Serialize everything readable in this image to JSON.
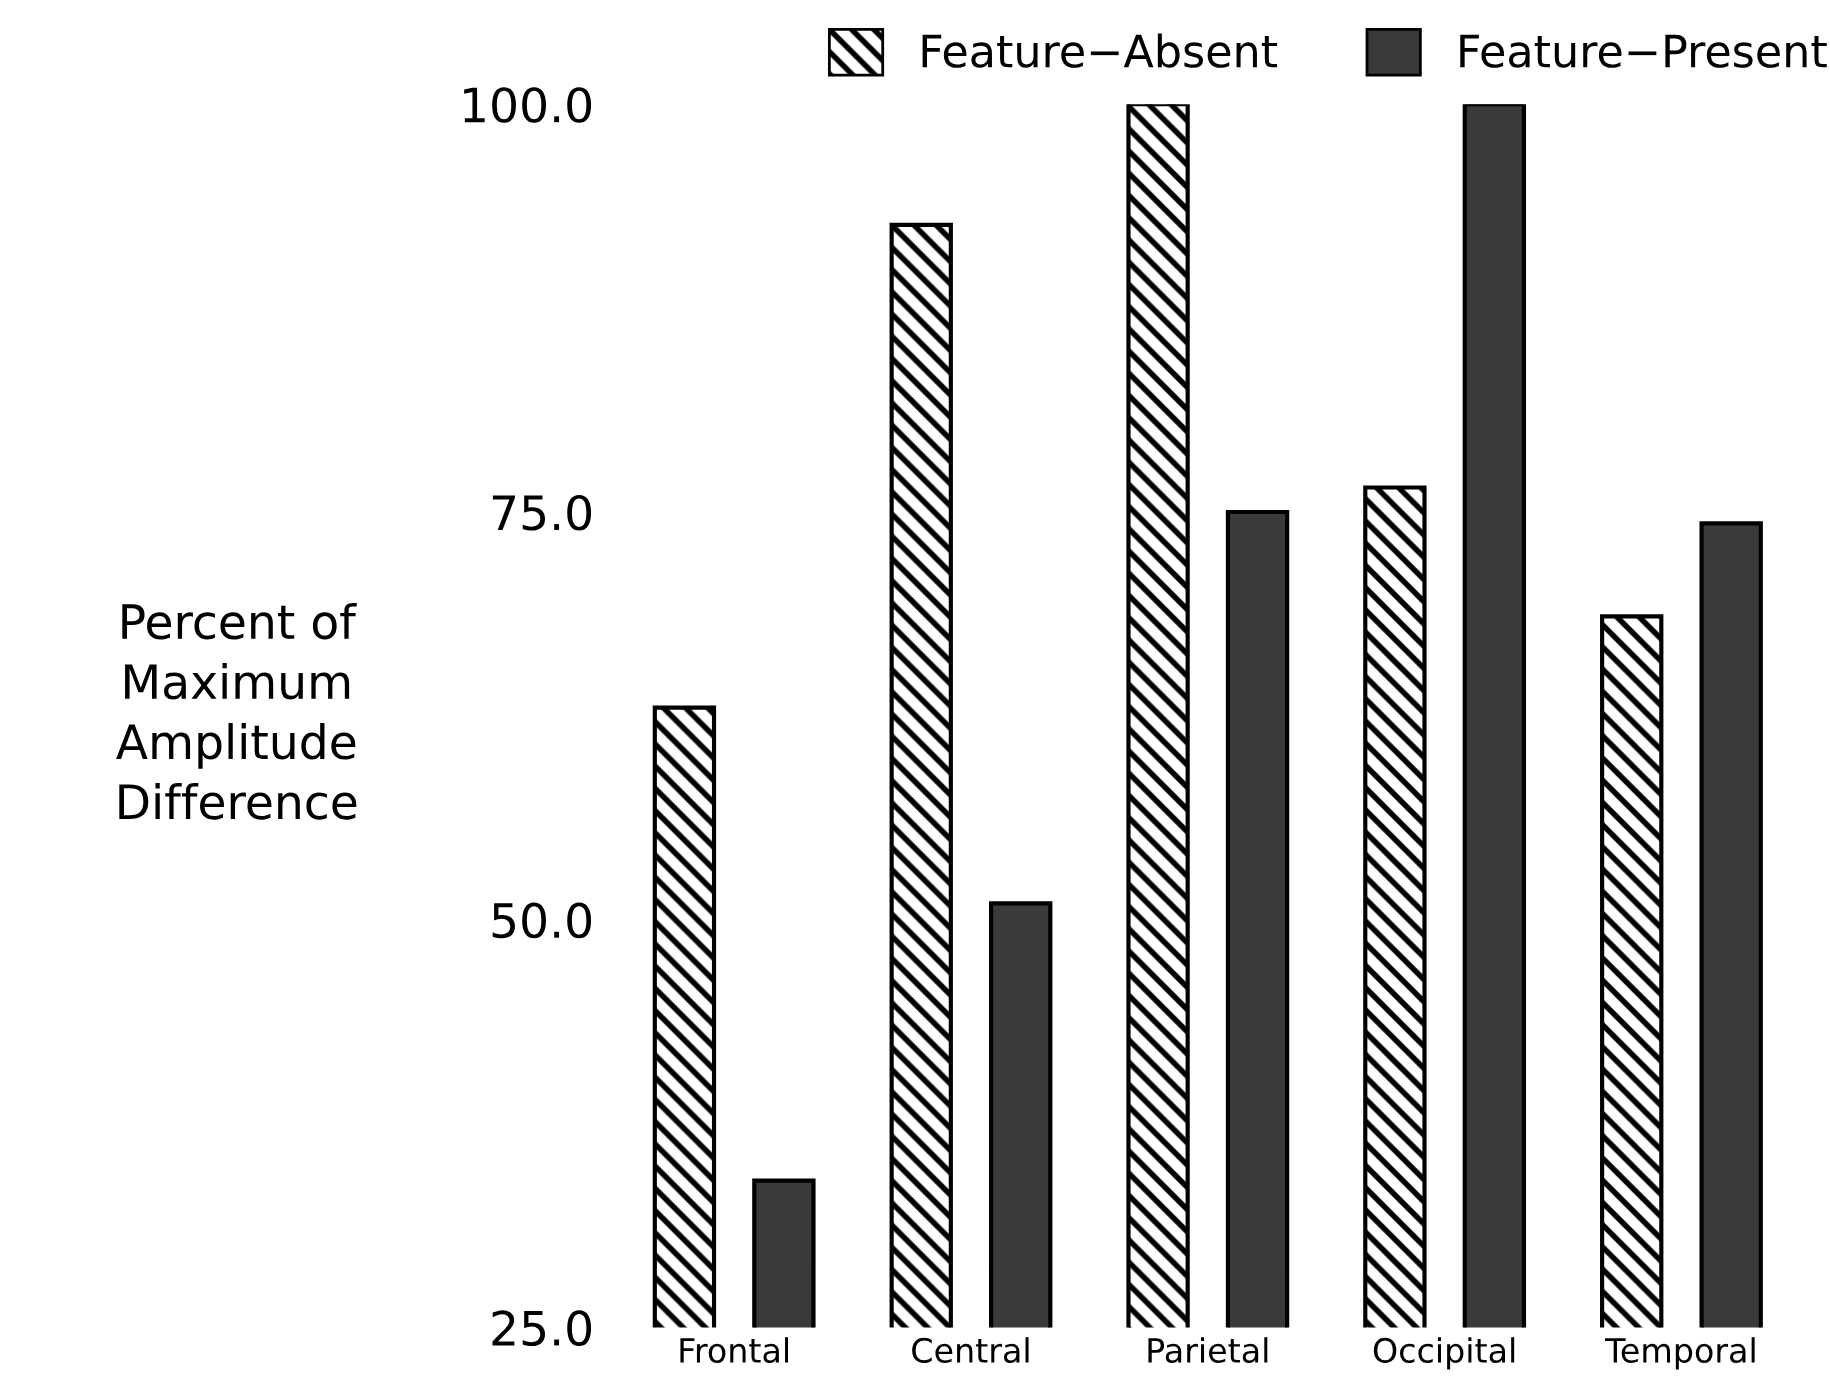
{
  "chart_data": {
    "type": "bar",
    "ylabel": "Percent of\nMaximum\nAmplitude\nDifference",
    "categories": [
      "Frontal",
      "Central",
      "Parietal",
      "Occipital",
      "Temporal"
    ],
    "series": [
      {
        "name": "Feature−Absent",
        "color": "#000000",
        "values": [
          63,
          92.6,
          100,
          76.5,
          68.6
        ]
      },
      {
        "name": "Feature−Present",
        "color": "#3a3a3a",
        "values": [
          34,
          51,
          75,
          100,
          74.3
        ]
      }
    ],
    "ylim": [
      25,
      100
    ],
    "yticks": [
      {
        "value": 25,
        "label": "25.0"
      },
      {
        "value": 50,
        "label": "50.0"
      },
      {
        "value": 75,
        "label": "75.0"
      },
      {
        "value": 100,
        "label": "100.0"
      }
    ],
    "grid": false,
    "legend": "top"
  }
}
